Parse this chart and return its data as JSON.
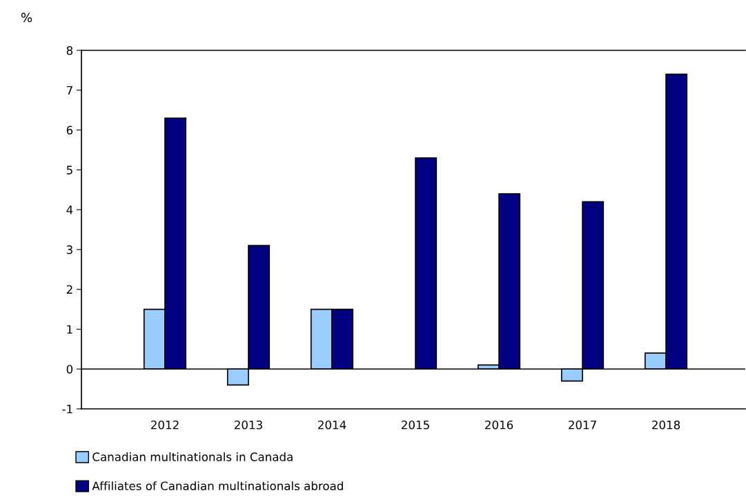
{
  "chart_data": {
    "type": "bar",
    "ylabel": "%",
    "categories": [
      "2012",
      "2013",
      "2014",
      "2015",
      "2016",
      "2017",
      "2018"
    ],
    "series": [
      {
        "name": "Canadian multinationals in Canada",
        "color": "#99ccff",
        "values": [
          1.5,
          -0.4,
          1.5,
          null,
          0.1,
          -0.3,
          0.4
        ]
      },
      {
        "name": "Affiliates of Canadian multinationals abroad",
        "color": "#000080",
        "values": [
          6.3,
          3.1,
          1.5,
          5.3,
          4.4,
          4.2,
          7.4
        ]
      }
    ],
    "ylim": [
      -1,
      8
    ],
    "yticks": [
      -1,
      0,
      1,
      2,
      3,
      4,
      5,
      6,
      7,
      8
    ],
    "ref_lines": [
      {
        "axis": "y",
        "value": 0
      }
    ],
    "grid": false,
    "legend": "bottom left"
  }
}
